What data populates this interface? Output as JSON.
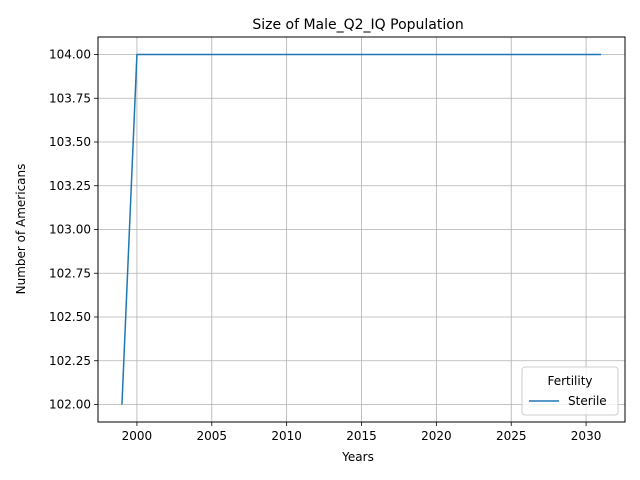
{
  "chart_data": {
    "type": "line",
    "title": "Size of Male_Q2_IQ Population",
    "xlabel": "Years",
    "ylabel": "Number of Americans",
    "x": [
      1999,
      2000,
      2001,
      2002,
      2003,
      2004,
      2005,
      2006,
      2007,
      2008,
      2009,
      2010,
      2011,
      2012,
      2013,
      2014,
      2015,
      2016,
      2017,
      2018,
      2019,
      2020,
      2021,
      2022,
      2023,
      2024,
      2025,
      2026,
      2027,
      2028,
      2029,
      2030,
      2031
    ],
    "series": [
      {
        "name": "Sterile",
        "color": "#1f77b4",
        "values": [
          102,
          104,
          104,
          104,
          104,
          104,
          104,
          104,
          104,
          104,
          104,
          104,
          104,
          104,
          104,
          104,
          104,
          104,
          104,
          104,
          104,
          104,
          104,
          104,
          104,
          104,
          104,
          104,
          104,
          104,
          104,
          104,
          104
        ]
      }
    ],
    "xlim": [
      1997.4,
      2032.6
    ],
    "ylim": [
      101.9,
      104.1
    ],
    "xticks": [
      2000,
      2005,
      2010,
      2015,
      2020,
      2025,
      2030
    ],
    "xtick_labels": [
      "2000",
      "2005",
      "2010",
      "2015",
      "2020",
      "2025",
      "2030"
    ],
    "yticks": [
      102.0,
      102.25,
      102.5,
      102.75,
      103.0,
      103.25,
      103.5,
      103.75,
      104.0
    ],
    "ytick_labels": [
      "102.00",
      "102.25",
      "102.50",
      "102.75",
      "103.00",
      "103.25",
      "103.50",
      "103.75",
      "104.00"
    ],
    "grid": true,
    "legend": {
      "title": "Fertility",
      "placement": "lower-right",
      "entries": [
        "Sterile"
      ]
    }
  }
}
